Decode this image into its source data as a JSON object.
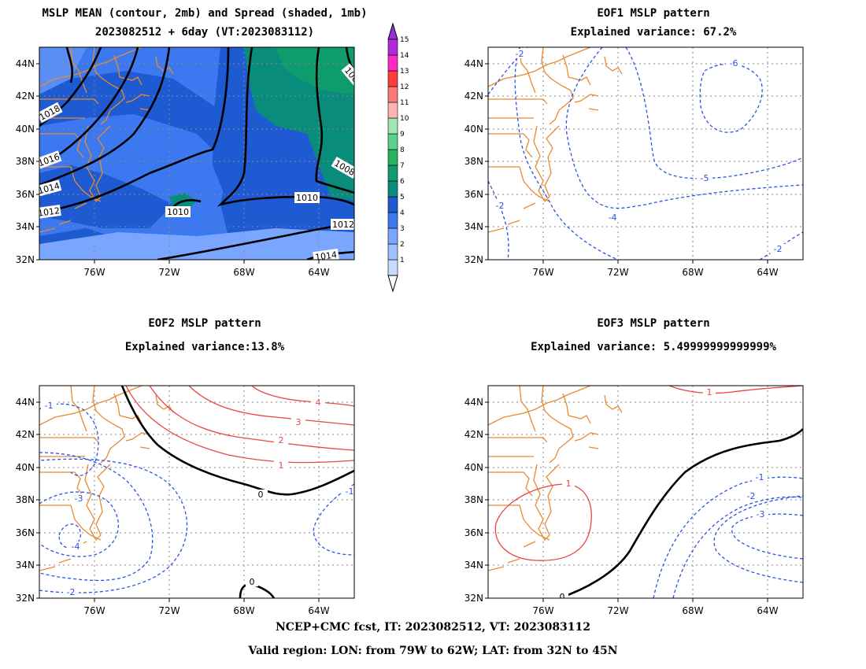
{
  "panels": {
    "p1": {
      "title1": "MSLP MEAN (contour, 2mb) and Spread (shaded, 1mb)",
      "title2": "2023082512 + 6day (VT:2023083112)"
    },
    "p2": {
      "title1": "EOF1 MSLP pattern",
      "title2": "Explained variance: 67.2%"
    },
    "p3": {
      "title1": "EOF2 MSLP pattern",
      "title2": "Explained variance:13.8%"
    },
    "p4": {
      "title1": "EOF3 MSLP pattern",
      "title2": "Explained variance: 5.49999999999999%"
    }
  },
  "axes": {
    "lat_ticks": [
      "44N",
      "42N",
      "40N",
      "38N",
      "36N",
      "34N",
      "32N"
    ],
    "lon_ticks": [
      "76W",
      "72W",
      "68W",
      "64W"
    ]
  },
  "colorbar": {
    "labels": [
      "1",
      "2",
      "3",
      "4",
      "5",
      "6",
      "7",
      "8",
      "9",
      "10",
      "11",
      "12",
      "13",
      "14",
      "15"
    ],
    "colors": [
      "#c8dcff",
      "#a0c0ff",
      "#7ba6ff",
      "#3c78f0",
      "#1e5ad2",
      "#0a8c7d",
      "#0e9c6e",
      "#28b45a",
      "#5ad28c",
      "#a0e6b4",
      "#ffb4b4",
      "#ff7878",
      "#ff3c3c",
      "#ff28c8",
      "#b428dc"
    ]
  },
  "contour_labels": {
    "mean": [
      "1018",
      "1016",
      "1014",
      "1012",
      "1010",
      "1010",
      "1012",
      "1014",
      "1008",
      "100"
    ],
    "eof1": [
      "-2",
      "-6",
      "-5",
      "-4",
      "-2",
      "-2"
    ],
    "eof2": [
      "-1",
      "4",
      "3",
      "2",
      "1",
      "0",
      "-3",
      "-4",
      "-2",
      "-1",
      "0"
    ],
    "eof3": [
      "1",
      "1",
      "-1",
      "-2",
      "-3",
      "0"
    ]
  },
  "footer": {
    "line1": "NCEP+CMC fcst, IT: 2023082512, VT: 2023083112",
    "line2": "Valid region: LON: from 79W to 62W; LAT: from 32N to 45N"
  }
}
